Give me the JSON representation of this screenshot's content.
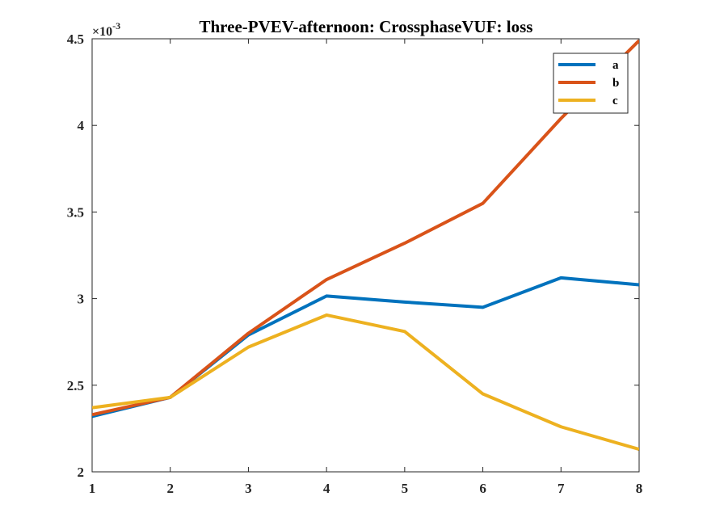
{
  "chart_data": {
    "type": "line",
    "title": "Three-PVEV-afternoon: CrossphaseVUF: loss",
    "xlabel": "",
    "ylabel": "",
    "y_multiplier_label": {
      "base": "×10",
      "exponent": "-3"
    },
    "x": [
      1,
      2,
      3,
      4,
      5,
      6,
      7,
      8
    ],
    "xlim": [
      1,
      8
    ],
    "ylim": [
      2.0,
      4.5
    ],
    "x_ticks": [
      "1",
      "2",
      "3",
      "4",
      "5",
      "6",
      "7",
      "8"
    ],
    "y_ticks": [
      "2",
      "2.5",
      "3",
      "3.5",
      "4",
      "4.5"
    ],
    "grid": false,
    "legend_position": "top-right",
    "series": [
      {
        "name": "a",
        "color": "#0072BD",
        "values": [
          2.32,
          2.43,
          2.79,
          3.015,
          2.98,
          2.95,
          3.12,
          3.08
        ]
      },
      {
        "name": "b",
        "color": "#D95319",
        "values": [
          2.33,
          2.43,
          2.8,
          3.11,
          3.32,
          3.55,
          4.04,
          4.49
        ]
      },
      {
        "name": "c",
        "color": "#EDB120",
        "values": [
          2.37,
          2.43,
          2.72,
          2.905,
          2.81,
          2.45,
          2.26,
          2.13
        ]
      }
    ]
  }
}
